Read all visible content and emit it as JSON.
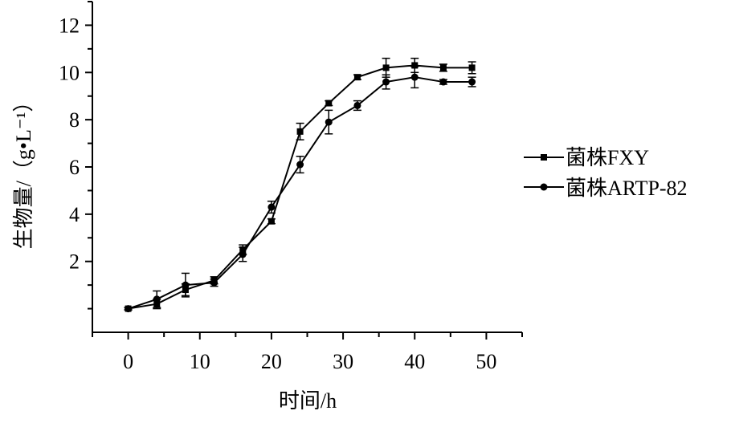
{
  "chart_data": {
    "type": "line",
    "title": "",
    "xlabel": "时间/h",
    "ylabel": "生物量/（g•L⁻¹）",
    "xlim": [
      -5,
      55
    ],
    "ylim": [
      -1,
      13
    ],
    "xticks": [
      0,
      10,
      20,
      30,
      40,
      50
    ],
    "yticks": [
      2,
      4,
      6,
      8,
      10,
      12
    ],
    "legend_position": "right",
    "grid": false,
    "x": [
      0,
      4,
      8,
      12,
      16,
      20,
      24,
      28,
      32,
      36,
      40,
      44,
      48
    ],
    "series": [
      {
        "name": "菌株FXY",
        "marker": "square",
        "values": [
          0.0,
          0.2,
          0.8,
          1.2,
          2.5,
          3.7,
          7.5,
          8.7,
          9.8,
          10.2,
          10.3,
          10.2,
          10.2
        ],
        "errors": [
          0.05,
          0.2,
          0.25,
          0.15,
          0.2,
          0.1,
          0.35,
          0.1,
          0.1,
          0.4,
          0.3,
          0.15,
          0.25
        ]
      },
      {
        "name": "菌株ARTP-82",
        "marker": "circle",
        "values": [
          0.0,
          0.4,
          1.0,
          1.1,
          2.3,
          4.3,
          6.1,
          7.9,
          8.6,
          9.6,
          9.8,
          9.6,
          9.6
        ],
        "errors": [
          0.05,
          0.35,
          0.5,
          0.15,
          0.3,
          0.25,
          0.35,
          0.5,
          0.2,
          0.3,
          0.45,
          0.1,
          0.2
        ]
      }
    ]
  }
}
